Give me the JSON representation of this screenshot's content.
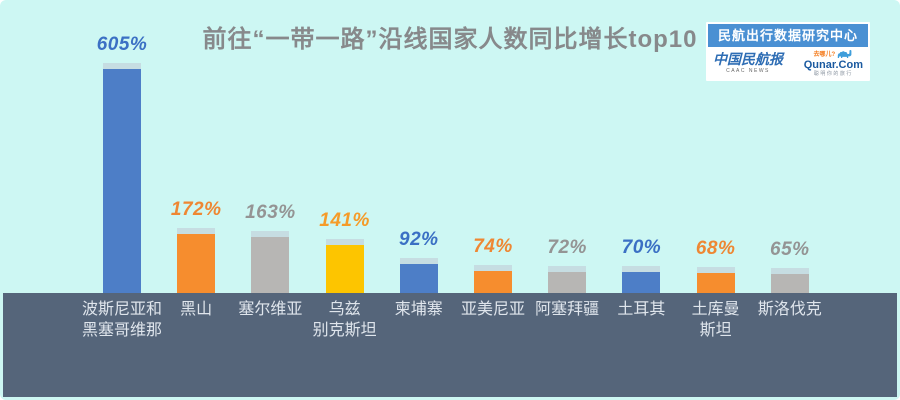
{
  "title": "前往“一带一路”沿线国家人数同比增长top10",
  "badge": {
    "header": "民航出行数据研究中心",
    "header_bg": "#4a90d3",
    "caac_logo": {
      "name": "中国民航报",
      "caption": "CAAC NEWS"
    },
    "qunar_logo": {
      "top": "去哪儿?",
      "name": "Qunar.Com",
      "caption": "聪明你的旅行"
    }
  },
  "colors": {
    "background": "#cdf7f3",
    "footer_band": "#55657a",
    "title_text": "#87898b",
    "category_text": "#dfe5ec",
    "bar_blue": "#4d7ec7",
    "bar_orange": "#f68d2e",
    "bar_gray": "#b7b6b4",
    "bar_yellow": "#fdc500"
  },
  "chart_data": {
    "type": "bar",
    "title": "前往“一带一路”沿线国家人数同比增长top10",
    "unit": "%",
    "categories": [
      "波斯尼亚和黑塞哥维那",
      "黑山",
      "塞尔维亚",
      "乌兹别克斯坦",
      "柬埔寨",
      "亚美尼亚",
      "阿塞拜疆",
      "土耳其",
      "土库曼斯坦",
      "斯洛伐克"
    ],
    "category_lines": [
      [
        "波斯尼亚和",
        "黑塞哥维那"
      ],
      [
        "黑山"
      ],
      [
        "塞尔维亚"
      ],
      [
        "乌兹",
        "别克斯坦"
      ],
      [
        "柬埔寨"
      ],
      [
        "亚美尼亚"
      ],
      [
        "阿塞拜疆"
      ],
      [
        "土耳其"
      ],
      [
        "土库曼",
        "斯坦"
      ],
      [
        "斯洛伐克"
      ]
    ],
    "values": [
      605,
      172,
      163,
      141,
      92,
      74,
      72,
      70,
      68,
      65
    ],
    "value_labels": [
      "605%",
      "172%",
      "163%",
      "141%",
      "92%",
      "74%",
      "72%",
      "70%",
      "68%",
      "65%"
    ],
    "bar_colors": [
      "#4d7ec7",
      "#f68d2e",
      "#b7b6b4",
      "#fdc500",
      "#4d7ec7",
      "#f68d2e",
      "#b7b6b4",
      "#4d7ec7",
      "#f68d2e",
      "#b7b6b4"
    ],
    "value_label_colors": [
      "#3b70c4",
      "#ee8733",
      "#949494",
      "#f59b29",
      "#3b70c4",
      "#ee8733",
      "#949494",
      "#3b70c4",
      "#ee8733",
      "#949494"
    ],
    "cap_color": "#c6dde2",
    "xlabel": "",
    "ylabel": "",
    "ylim": [
      0,
      650
    ],
    "grid": false,
    "legend": false
  }
}
